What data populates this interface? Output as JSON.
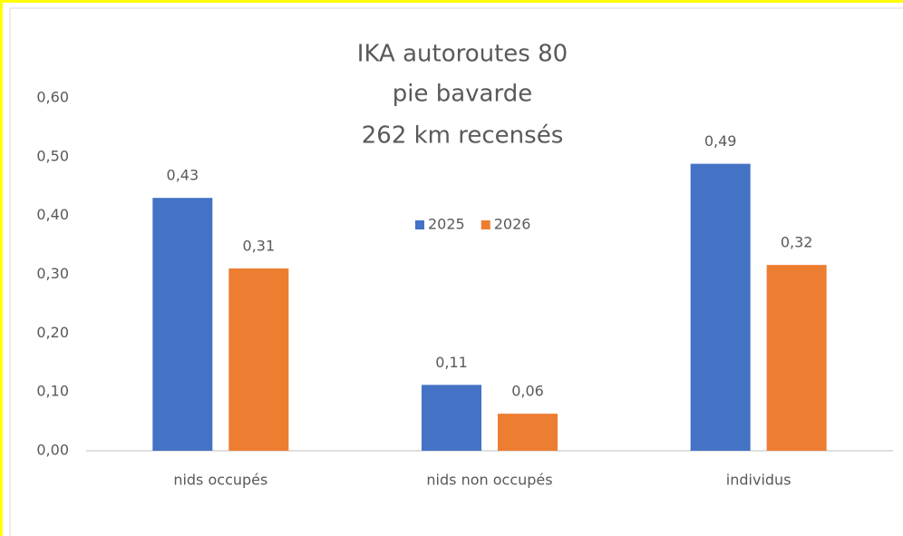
{
  "chart_data": {
    "type": "bar",
    "title": [
      "IKA autoroutes 80",
      "pie bavarde",
      "262 km recensés"
    ],
    "categories": [
      "nids occupés",
      "nids non occupés",
      "individus"
    ],
    "series": [
      {
        "name": "2025",
        "color": "#4472c4",
        "values": [
          0.43,
          0.112,
          0.488
        ],
        "value_labels": [
          "0,43",
          "0,11",
          "0,49"
        ]
      },
      {
        "name": "2026",
        "color": "#ed7d31",
        "values": [
          0.31,
          0.063,
          0.316
        ],
        "value_labels": [
          "0,31",
          "0,06",
          "0,32"
        ]
      }
    ],
    "ylim": [
      0,
      0.6
    ],
    "yticks": [
      {
        "value": 0,
        "label": "0,00"
      },
      {
        "value": 0.1,
        "label": "0,10"
      },
      {
        "value": 0.2,
        "label": "0,20"
      },
      {
        "value": 0.3,
        "label": "0,30"
      },
      {
        "value": 0.4,
        "label": "0,40"
      },
      {
        "value": 0.5,
        "label": "0,50"
      },
      {
        "value": 0.6,
        "label": "0,60"
      }
    ],
    "grid": false,
    "legend": "top"
  }
}
